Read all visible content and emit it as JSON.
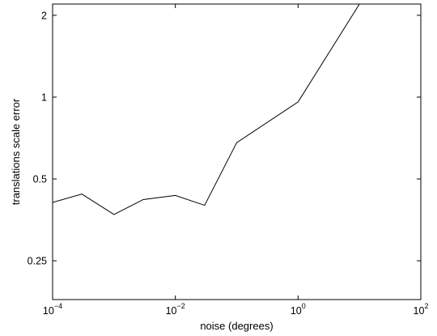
{
  "chart_data": {
    "type": "line",
    "title": "",
    "xlabel": "noise (degrees)",
    "ylabel": "translations scale error",
    "xscale": "log",
    "yscale": "log",
    "xlim": [
      0.0001,
      100
    ],
    "ylim": [
      0.18,
      2.2
    ],
    "xticks": [
      {
        "value": 0.0001,
        "base": "10",
        "exp": "−4"
      },
      {
        "value": 0.01,
        "base": "10",
        "exp": "−2"
      },
      {
        "value": 1,
        "base": "10",
        "exp": "0"
      },
      {
        "value": 100,
        "base": "10",
        "exp": "2"
      }
    ],
    "yticks": [
      {
        "value": 0.25,
        "label": "0.25"
      },
      {
        "value": 0.5,
        "label": "0.5"
      },
      {
        "value": 1,
        "label": "1"
      },
      {
        "value": 2,
        "label": "2"
      }
    ],
    "grid": false,
    "legend": "none",
    "line_color": "#000000",
    "series": [
      {
        "x": [
          0.0001,
          0.0003,
          0.001,
          0.003,
          0.01,
          0.03,
          0.1,
          1,
          10
        ],
        "y": [
          0.41,
          0.44,
          0.37,
          0.42,
          0.435,
          0.4,
          0.68,
          0.96,
          2.2
        ]
      }
    ]
  }
}
